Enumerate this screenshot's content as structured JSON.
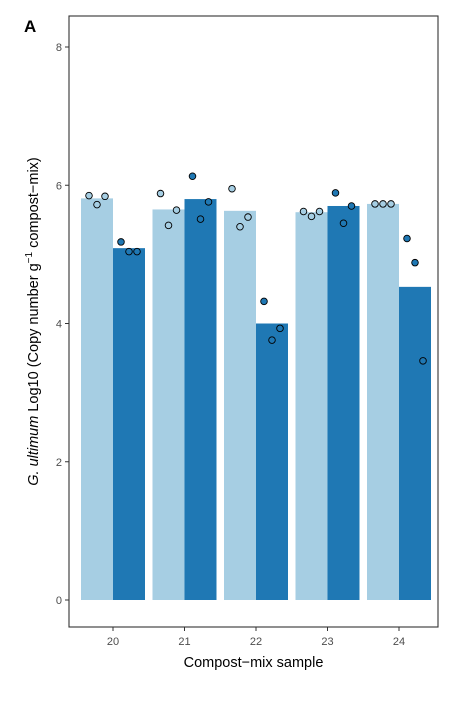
{
  "chart_data": {
    "type": "bar",
    "panel_label": "A",
    "xlabel": "Compost−mix sample",
    "ylabel": {
      "species": "G. ultimum",
      "rest_before_sup": " Log10 (Copy number g",
      "superscript": "−1",
      "rest_after_sup": " compost−mix)"
    },
    "categories": [
      "20",
      "21",
      "22",
      "23",
      "24"
    ],
    "ylim": [
      0,
      8
    ],
    "yticks": [
      0,
      2,
      4,
      6,
      8
    ],
    "ytick_labels": [
      "0",
      "2",
      "4",
      "6",
      "8"
    ],
    "grid": false,
    "legend": "none",
    "series": [
      {
        "color": "#a6cee3",
        "values": [
          5.81,
          5.65,
          5.63,
          5.61,
          5.73
        ],
        "points": [
          [
            5.85,
            5.72,
            5.84
          ],
          [
            5.88,
            5.42,
            5.64
          ],
          [
            5.95,
            5.4,
            5.54
          ],
          [
            5.62,
            5.55,
            5.62
          ],
          [
            5.73,
            5.73,
            5.73
          ]
        ]
      },
      {
        "color": "#1f78b4",
        "values": [
          5.09,
          5.8,
          4.0,
          5.7,
          4.53
        ],
        "points": [
          [
            5.18,
            5.04,
            5.04
          ],
          [
            6.13,
            5.51,
            5.76
          ],
          [
            4.32,
            3.76,
            3.93
          ],
          [
            5.89,
            5.45,
            5.7
          ],
          [
            5.23,
            4.88,
            3.46
          ]
        ]
      }
    ]
  }
}
